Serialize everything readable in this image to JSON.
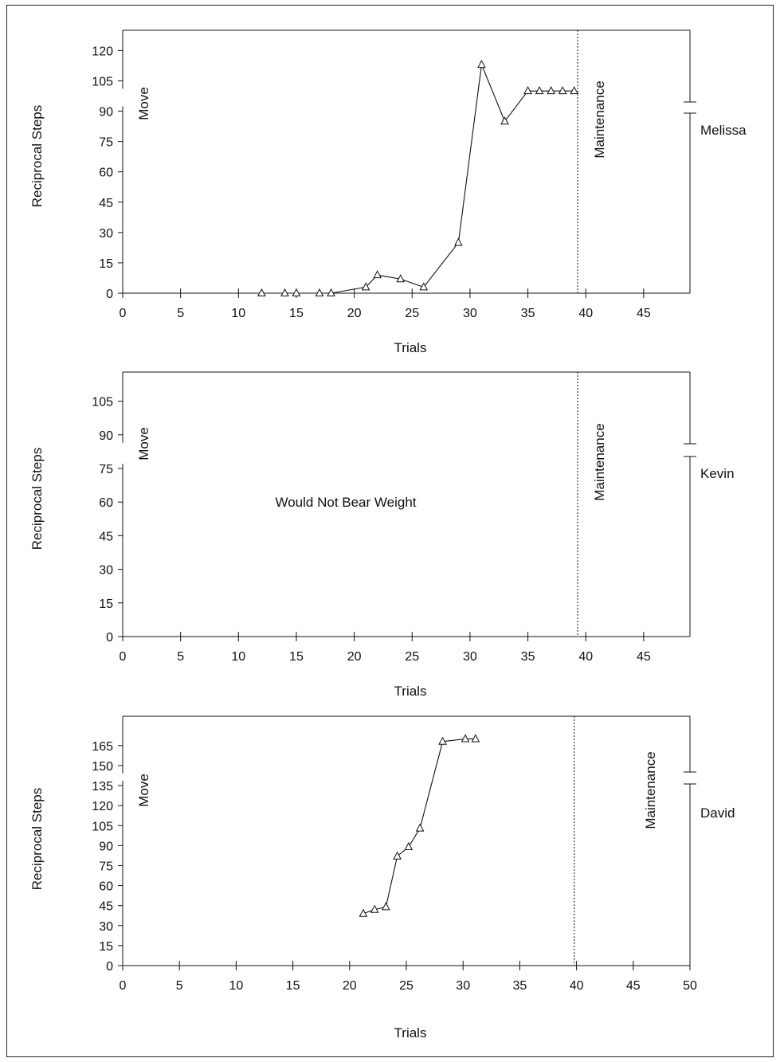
{
  "chart_data": [
    {
      "type": "line",
      "participant": "Melissa",
      "ylabel": "Reciprocal Steps",
      "xlabel": "Trials",
      "phase_labels": [
        "Move",
        "Maintenance"
      ],
      "xlim": [
        0,
        49
      ],
      "ylim": [
        0,
        130
      ],
      "xticks": [
        0,
        5,
        10,
        15,
        20,
        25,
        30,
        35,
        40,
        45
      ],
      "yticks": [
        0,
        15,
        30,
        45,
        60,
        75,
        90,
        105,
        120
      ],
      "phase_change_x": 39.3,
      "axis_break_between": [
        90,
        105
      ],
      "marker": "open-triangle",
      "series": [
        {
          "x": [
            12,
            14,
            15,
            17,
            18,
            21,
            22,
            24,
            26,
            29,
            31,
            33,
            35,
            36,
            37,
            38,
            39
          ],
          "values": [
            0,
            0,
            0,
            0,
            0,
            3,
            9,
            7,
            3,
            25,
            113,
            85,
            100,
            100,
            100,
            100,
            100
          ]
        }
      ],
      "annotation": ""
    },
    {
      "type": "line",
      "participant": "Kevin",
      "ylabel": "Reciprocal Steps",
      "xlabel": "Trials",
      "phase_labels": [
        "Move",
        "Maintenance"
      ],
      "xlim": [
        0,
        49
      ],
      "ylim": [
        0,
        118
      ],
      "xticks": [
        0,
        5,
        10,
        15,
        20,
        25,
        30,
        35,
        40,
        45
      ],
      "yticks": [
        0,
        15,
        30,
        45,
        60,
        75,
        90,
        105
      ],
      "phase_change_x": 39.3,
      "axis_break_between": [
        75,
        90
      ],
      "marker": "open-triangle",
      "series": [],
      "annotation": "Would Not Bear Weight"
    },
    {
      "type": "line",
      "participant": "David",
      "ylabel": "Reciprocal Steps",
      "xlabel": "Trials",
      "phase_labels": [
        "Move",
        "Maintenance"
      ],
      "xlim": [
        0,
        50
      ],
      "ylim": [
        0,
        187
      ],
      "xticks": [
        0,
        5,
        10,
        15,
        20,
        25,
        30,
        35,
        40,
        45,
        50
      ],
      "yticks": [
        0,
        15,
        30,
        45,
        60,
        75,
        90,
        105,
        120,
        135,
        150,
        165
      ],
      "phase_change_x": 39.8,
      "axis_break_between": [
        135,
        150
      ],
      "marker": "open-triangle",
      "series": [
        {
          "x": [
            21.2,
            22.2,
            23.2,
            24.2,
            25.2,
            26.2,
            28.2,
            30.2,
            31.1
          ],
          "values": [
            39,
            42,
            44,
            82,
            89,
            103,
            168,
            170,
            170
          ]
        }
      ],
      "annotation": ""
    }
  ]
}
